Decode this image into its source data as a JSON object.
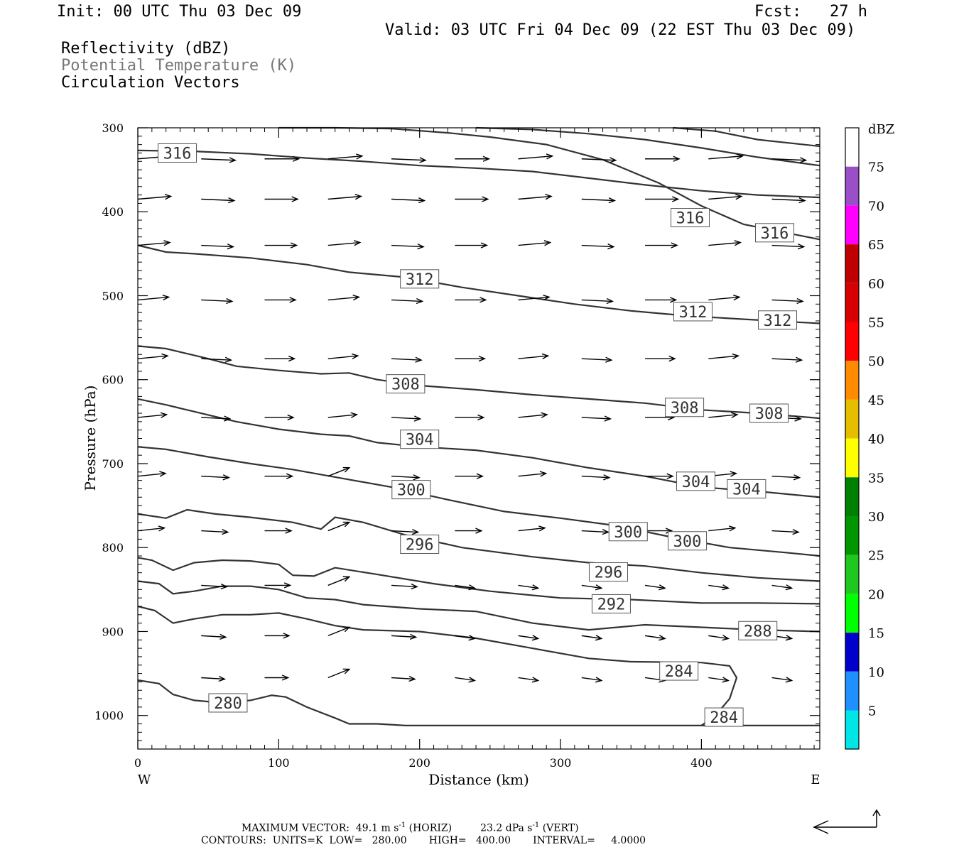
{
  "header": {
    "init": "Init: 00 UTC Thu 03 Dec 09",
    "fcst": "Fcst:   27 h",
    "valid": "Valid: 03 UTC Fri 04 Dec 09 (22 EST Thu 03 Dec 09)",
    "field1": "Reflectivity (dBZ)",
    "field2": "Potential Temperature (K)",
    "field3": "Circulation Vectors"
  },
  "footer": {
    "max_vector_label": "MAXIMUM VECTOR:",
    "horiz_value": "49.1 m s",
    "horiz_unit_sup": "-1",
    "horiz_tag": "(HORIZ)",
    "vert_value": "23.2 dPa s",
    "vert_unit_sup": "-1",
    "vert_tag": "(VERT)",
    "contours": "CONTOURS:  UNITS=K  LOW=   280.00       HIGH=   400.00       INTERVAL=     4.0000"
  },
  "colors": {
    "contour": "#333333",
    "frame": "#000000"
  },
  "chart_data": {
    "type": "contour",
    "title": "",
    "xlabel": "Distance (km)",
    "ylabel": "Pressure (hPa)",
    "xlim": [
      0,
      484
    ],
    "ylim": [
      1040,
      300
    ],
    "x_ticks": [
      0,
      100,
      200,
      300,
      400
    ],
    "y_ticks": [
      300,
      400,
      500,
      600,
      700,
      800,
      900,
      1000
    ],
    "x_end_labels": {
      "left": "W",
      "right": "E"
    },
    "colorbar": {
      "unit": "dBZ",
      "levels": [
        5,
        10,
        15,
        20,
        25,
        30,
        35,
        40,
        45,
        50,
        55,
        60,
        65,
        70,
        75
      ],
      "colors": [
        "#ffffff",
        "#00e6e6",
        "#1e90ff",
        "#0000cd",
        "#00ff00",
        "#1ec81e",
        "#009600",
        "#008000",
        "#ffff00",
        "#e6be00",
        "#ff8c00",
        "#ff0000",
        "#d70000",
        "#c00000",
        "#ff00ff",
        "#9a4fc9",
        "#ffffff"
      ]
    },
    "contour_labels": [
      {
        "value": "316",
        "x": 28,
        "p": 330
      },
      {
        "value": "316",
        "x": 392,
        "p": 407
      },
      {
        "value": "316",
        "x": 452,
        "p": 425
      },
      {
        "value": "312",
        "x": 200,
        "p": 480
      },
      {
        "value": "312",
        "x": 394,
        "p": 519
      },
      {
        "value": "312",
        "x": 454,
        "p": 529
      },
      {
        "value": "308",
        "x": 190,
        "p": 605
      },
      {
        "value": "308",
        "x": 388,
        "p": 633
      },
      {
        "value": "308",
        "x": 448,
        "p": 640
      },
      {
        "value": "304",
        "x": 200,
        "p": 671
      },
      {
        "value": "304",
        "x": 396,
        "p": 721
      },
      {
        "value": "304",
        "x": 432,
        "p": 730
      },
      {
        "value": "300",
        "x": 194,
        "p": 731
      },
      {
        "value": "300",
        "x": 348,
        "p": 781
      },
      {
        "value": "300",
        "x": 390,
        "p": 792
      },
      {
        "value": "296",
        "x": 200,
        "p": 796
      },
      {
        "value": "296",
        "x": 334,
        "p": 829
      },
      {
        "value": "292",
        "x": 336,
        "p": 867
      },
      {
        "value": "288",
        "x": 440,
        "p": 899
      },
      {
        "value": "284",
        "x": 384,
        "p": 947
      },
      {
        "value": "284",
        "x": 416,
        "p": 1002
      },
      {
        "value": "280",
        "x": 64,
        "p": 985
      }
    ]
  }
}
